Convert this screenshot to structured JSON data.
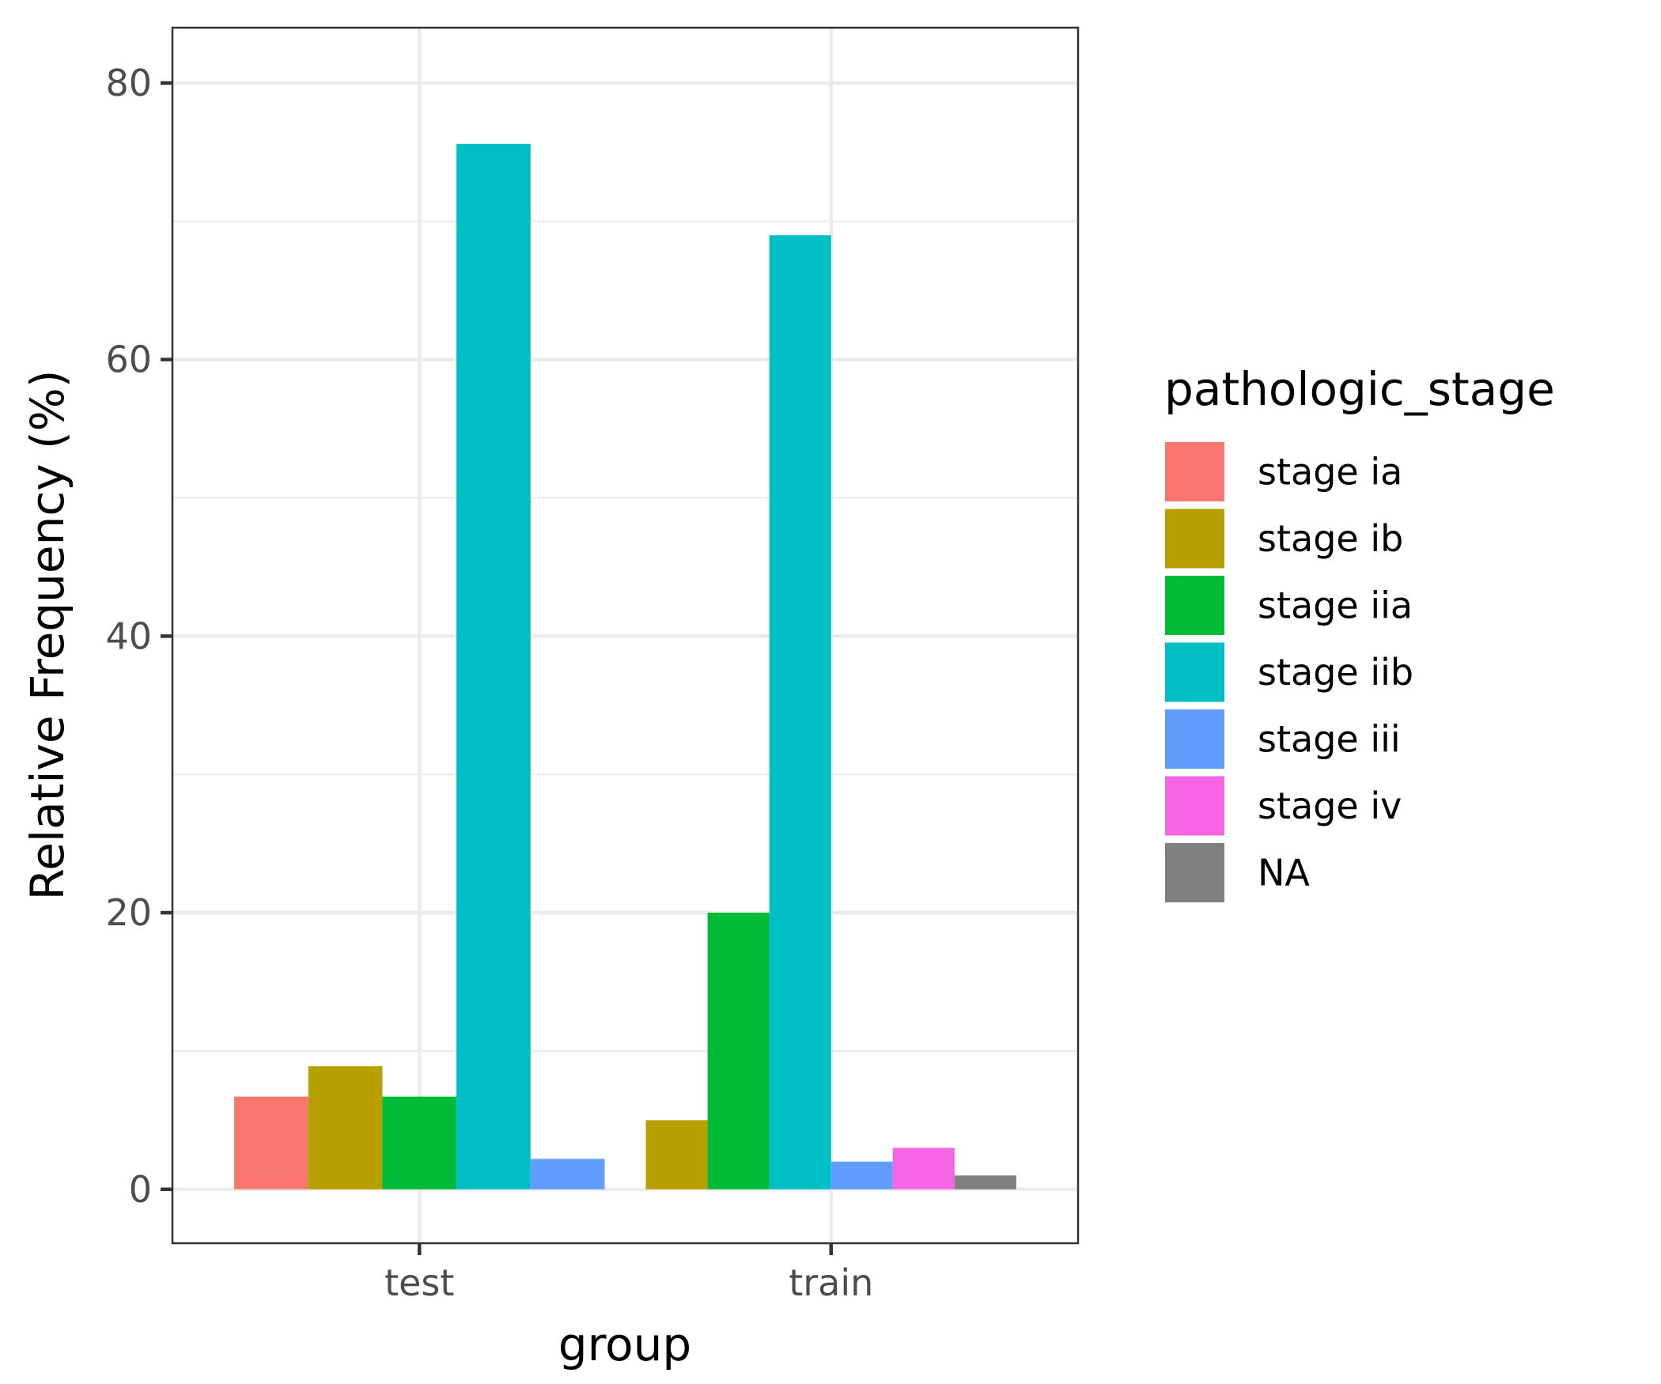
{
  "chart_data": {
    "type": "bar",
    "xlabel": "group",
    "ylabel": "Relative Frequency (%)",
    "ylim": [
      -3.9,
      84
    ],
    "yticks": [
      0,
      20,
      40,
      60,
      80
    ],
    "grid": true,
    "legend_title": "pathologic_stage",
    "legend_position": "right",
    "categories": [
      "test",
      "train"
    ],
    "series": [
      {
        "name": "stage ia",
        "color": "#F8766D",
        "values": [
          6.7,
          null
        ]
      },
      {
        "name": "stage ib",
        "color": "#B79F00",
        "values": [
          8.9,
          5.0
        ]
      },
      {
        "name": "stage iia",
        "color": "#00BA38",
        "values": [
          6.7,
          20.0
        ]
      },
      {
        "name": "stage iib",
        "color": "#00BFC4",
        "values": [
          75.6,
          69.0
        ]
      },
      {
        "name": "stage iii",
        "color": "#619CFF",
        "values": [
          2.2,
          2.0
        ]
      },
      {
        "name": "stage iv",
        "color": "#F564E3",
        "values": [
          null,
          3.0
        ]
      },
      {
        "name": "NA",
        "color": "#808080",
        "values": [
          null,
          1.0
        ]
      }
    ]
  }
}
